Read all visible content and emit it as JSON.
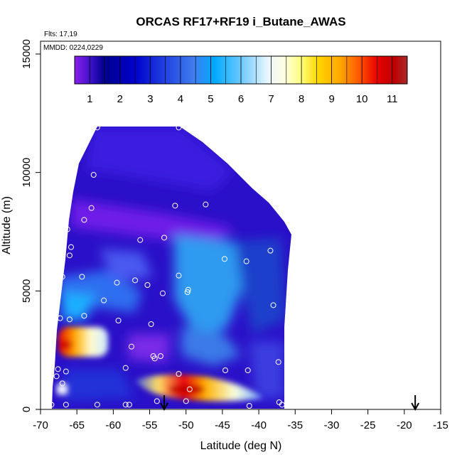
{
  "chart_data": {
    "type": "heatmap",
    "title": "ORCAS RF17+RF19 i_Butane_AWAS",
    "notes": [
      "Flts: 17,19",
      "MMDD: 0224,0229"
    ],
    "xlabel": "Latitude (deg N)",
    "ylabel": "Altitude (m)",
    "xlim": [
      -70,
      -15
    ],
    "ylim": [
      0,
      15000
    ],
    "x_ticks": [
      -70,
      -65,
      -60,
      -55,
      -50,
      -45,
      -40,
      -35,
      -30,
      -25,
      -20,
      -15
    ],
    "y_ticks": [
      0,
      5000,
      10000,
      15000
    ],
    "grid": false,
    "colorbar": {
      "ticks": [
        1,
        2,
        3,
        4,
        5,
        6,
        7,
        8,
        9,
        10,
        11
      ],
      "range": [
        0.5,
        11.5
      ],
      "placement": "top",
      "colors": [
        "#8a2be2",
        "#00008b",
        "#0000cd",
        "#4169e1",
        "#00bfff",
        "#e0ffff",
        "#ffff99",
        "#ffd700",
        "#ff8c00",
        "#ff0000",
        "#a52a2a"
      ]
    },
    "samples": [
      {
        "lat": -62.2,
        "alt": 11900
      },
      {
        "lat": -51.0,
        "alt": 11900
      },
      {
        "lat": -62.7,
        "alt": 9900
      },
      {
        "lat": -63.0,
        "alt": 8500
      },
      {
        "lat": -51.5,
        "alt": 8600
      },
      {
        "lat": -47.3,
        "alt": 8650
      },
      {
        "lat": -64.0,
        "alt": 8000
      },
      {
        "lat": -66.3,
        "alt": 7600
      },
      {
        "lat": -56.3,
        "alt": 7150
      },
      {
        "lat": -53.0,
        "alt": 7250
      },
      {
        "lat": -65.8,
        "alt": 6850
      },
      {
        "lat": -66.0,
        "alt": 6500
      },
      {
        "lat": -44.7,
        "alt": 6350
      },
      {
        "lat": -41.7,
        "alt": 6250
      },
      {
        "lat": -38.4,
        "alt": 6700
      },
      {
        "lat": -67.0,
        "alt": 5600
      },
      {
        "lat": -64.3,
        "alt": 5600
      },
      {
        "lat": -51.0,
        "alt": 5650
      },
      {
        "lat": -59.5,
        "alt": 5350
      },
      {
        "lat": -57.0,
        "alt": 5450
      },
      {
        "lat": -55.3,
        "alt": 5250
      },
      {
        "lat": -49.7,
        "alt": 5050
      },
      {
        "lat": -49.8,
        "alt": 4950
      },
      {
        "lat": -53.2,
        "alt": 4900
      },
      {
        "lat": -61.3,
        "alt": 4600
      },
      {
        "lat": -38.0,
        "alt": 4400
      },
      {
        "lat": -64.0,
        "alt": 3950
      },
      {
        "lat": -67.3,
        "alt": 3850
      },
      {
        "lat": -66.0,
        "alt": 3800
      },
      {
        "lat": -59.3,
        "alt": 3750
      },
      {
        "lat": -54.8,
        "alt": 3600
      },
      {
        "lat": -57.5,
        "alt": 2650
      },
      {
        "lat": -54.5,
        "alt": 2250
      },
      {
        "lat": -53.5,
        "alt": 2250
      },
      {
        "lat": -54.3,
        "alt": 2150
      },
      {
        "lat": -67.6,
        "alt": 1700
      },
      {
        "lat": -58.3,
        "alt": 1750
      },
      {
        "lat": -37.3,
        "alt": 2000
      },
      {
        "lat": -68.5,
        "alt": 1550
      },
      {
        "lat": -66.5,
        "alt": 1600
      },
      {
        "lat": -67.8,
        "alt": 1400
      },
      {
        "lat": -51.0,
        "alt": 1500
      },
      {
        "lat": -44.6,
        "alt": 1650
      },
      {
        "lat": -41.5,
        "alt": 1650
      },
      {
        "lat": -49.5,
        "alt": 850
      },
      {
        "lat": -67.0,
        "alt": 1100
      },
      {
        "lat": -54.0,
        "alt": 350
      },
      {
        "lat": -50.0,
        "alt": 350
      },
      {
        "lat": -68.5,
        "alt": 200
      },
      {
        "lat": -66.5,
        "alt": 200
      },
      {
        "lat": -62.2,
        "alt": 200
      },
      {
        "lat": -58.3,
        "alt": 200
      },
      {
        "lat": -57.8,
        "alt": 200
      },
      {
        "lat": -41.3,
        "alt": 150
      },
      {
        "lat": -36.8,
        "alt": 200
      },
      {
        "lat": -37.2,
        "alt": 300
      }
    ],
    "arrows": [
      {
        "lat": -53.0
      },
      {
        "lat": -18.5
      }
    ]
  }
}
